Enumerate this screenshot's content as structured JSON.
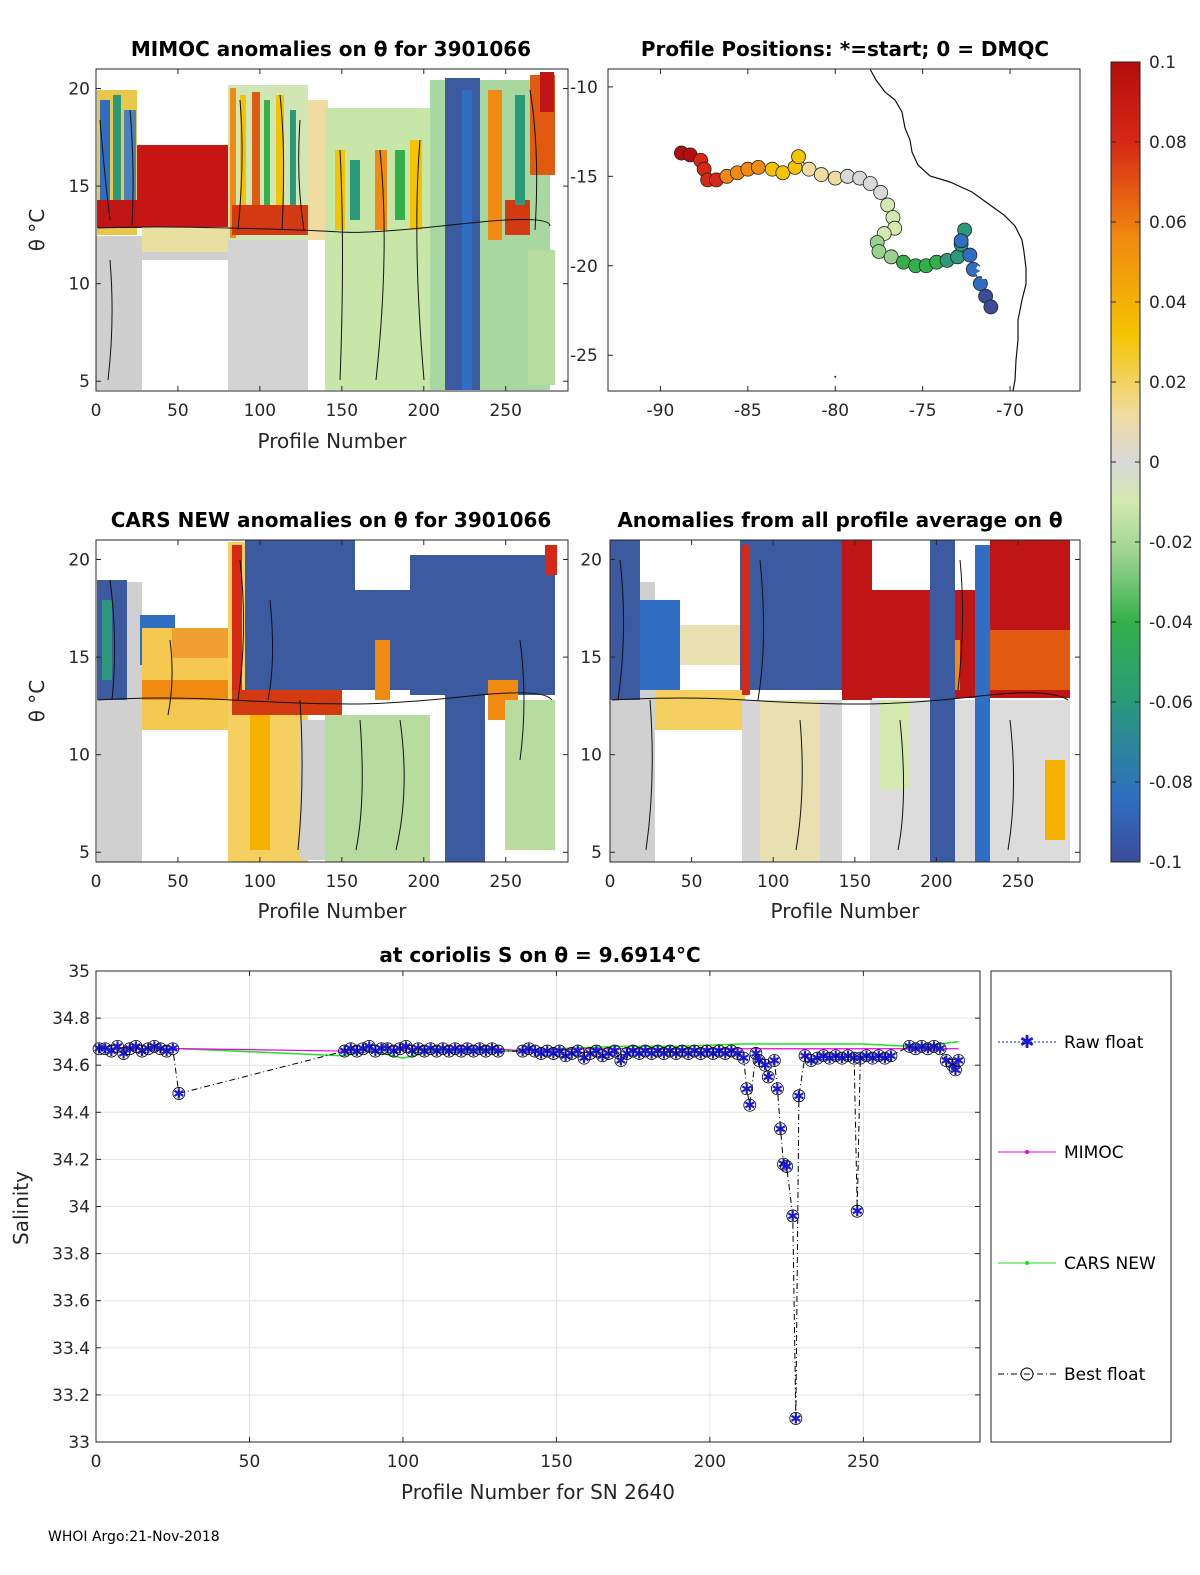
{
  "colors": {
    "raw_float": "#1a1ad6",
    "mimoc": "#e600e6",
    "cars_new": "#22e022",
    "best_float": "#000000",
    "colormap": [
      "#3b4c9a",
      "#2f6ec2",
      "#2a9a7a",
      "#33b04a",
      "#98d28e",
      "#d3e9b0",
      "#d9d9d9",
      "#f0dca0",
      "#f5c400",
      "#f08a10",
      "#d62815",
      "#b50d0d"
    ]
  },
  "footer": "WHOI Argo:21-Nov-2018",
  "chart_data": [
    {
      "id": "mimoc_anomalies",
      "type": "heatmap",
      "title": "MIMOC anomalies on θ  for 3901066",
      "xlabel": "Profile Number",
      "ylabel": "θ °C",
      "xlim": [
        0,
        288
      ],
      "ylim": [
        4.5,
        21
      ],
      "xticks": [
        "0",
        "50",
        "100",
        "150",
        "200",
        "250"
      ],
      "yticks": [
        "5",
        "10",
        "15",
        "20"
      ]
    },
    {
      "id": "profile_positions",
      "type": "scatter",
      "title": "Profile Positions: *=start; 0 = DMQC",
      "xlim": [
        -93,
        -66
      ],
      "ylim": [
        -27,
        -9
      ],
      "xticks": [
        "-90",
        "-85",
        "-80",
        "-75",
        "-70"
      ],
      "yticks": [
        "-10",
        "-15",
        "-20",
        "-25"
      ],
      "start_marker": [
        -71.5,
        -20.3
      ],
      "track": [
        [
          -88.8,
          -13.7
        ],
        [
          -88.3,
          -13.8
        ],
        [
          -87.7,
          -14.1
        ],
        [
          -87.5,
          -14.6
        ],
        [
          -87.3,
          -15.2
        ],
        [
          -86.8,
          -15.2
        ],
        [
          -86.2,
          -15.0
        ],
        [
          -85.6,
          -14.8
        ],
        [
          -85.0,
          -14.6
        ],
        [
          -84.4,
          -14.5
        ],
        [
          -83.6,
          -14.6
        ],
        [
          -83.0,
          -14.8
        ],
        [
          -82.3,
          -14.5
        ],
        [
          -82.1,
          -13.9
        ],
        [
          -81.5,
          -14.6
        ],
        [
          -80.8,
          -14.9
        ],
        [
          -80.0,
          -15.1
        ],
        [
          -79.3,
          -15.0
        ],
        [
          -78.6,
          -15.1
        ],
        [
          -78.0,
          -15.4
        ],
        [
          -77.4,
          -15.9
        ],
        [
          -77.0,
          -16.6
        ],
        [
          -76.7,
          -17.3
        ],
        [
          -76.6,
          -17.9
        ],
        [
          -77.2,
          -18.2
        ],
        [
          -77.6,
          -18.7
        ],
        [
          -77.5,
          -19.2
        ],
        [
          -76.8,
          -19.5
        ],
        [
          -76.1,
          -19.8
        ],
        [
          -75.4,
          -20.0
        ],
        [
          -74.8,
          -20.0
        ],
        [
          -74.2,
          -19.8
        ],
        [
          -73.6,
          -19.7
        ],
        [
          -73.0,
          -19.5
        ],
        [
          -72.8,
          -18.8
        ],
        [
          -72.6,
          -18.0
        ],
        [
          -72.8,
          -18.6
        ],
        [
          -72.3,
          -19.4
        ],
        [
          -72.1,
          -20.2
        ],
        [
          -71.7,
          -21.0
        ],
        [
          -71.4,
          -21.7
        ],
        [
          -71.1,
          -22.3
        ]
      ]
    },
    {
      "id": "colorbar",
      "type": "heatmap",
      "clim": [
        -0.1,
        0.1
      ],
      "ticks": [
        "0.1",
        "0.08",
        "0.06",
        "0.04",
        "0.02",
        "0",
        "-0.02",
        "-0.04",
        "-0.06",
        "-0.08",
        "-0.1"
      ]
    },
    {
      "id": "cars_new_anomalies",
      "type": "heatmap",
      "title": "CARS NEW anomalies on θ for 3901066",
      "xlabel": "Profile Number",
      "ylabel": "θ °C",
      "xlim": [
        0,
        288
      ],
      "ylim": [
        4.5,
        21
      ],
      "xticks": [
        "0",
        "50",
        "100",
        "150",
        "200",
        "250"
      ],
      "yticks": [
        "5",
        "10",
        "15",
        "20"
      ]
    },
    {
      "id": "all_profile_average_anomalies",
      "type": "heatmap",
      "title": "Anomalies from all profile average on θ",
      "xlabel": "Profile Number",
      "xlim": [
        0,
        288
      ],
      "ylim": [
        4.5,
        21
      ],
      "xticks": [
        "0",
        "50",
        "100",
        "150",
        "200",
        "250"
      ],
      "yticks": [
        "5",
        "10",
        "15",
        "20"
      ]
    },
    {
      "id": "salinity_timeseries",
      "type": "line",
      "title": "at coriolis S on θ = 9.6914°C",
      "xlabel": "Profile Number for SN 2640",
      "ylabel": "Salinity",
      "xlim": [
        0,
        288
      ],
      "ylim": [
        33,
        35
      ],
      "xticks": [
        "0",
        "50",
        "100",
        "150",
        "200",
        "250"
      ],
      "yticks": [
        "33",
        "33.2",
        "33.4",
        "33.6",
        "33.8",
        "34",
        "34.2",
        "34.4",
        "34.6",
        "34.8",
        "35"
      ],
      "legend": [
        "Raw float",
        "MIMOC",
        "CARS NEW",
        "Best float"
      ],
      "legend_position": "outside-right",
      "series": [
        {
          "name": "Raw float",
          "x": [
            1,
            3,
            5,
            7,
            9,
            11,
            13,
            15,
            17,
            19,
            21,
            23,
            25,
            27,
            81,
            83,
            85,
            87,
            89,
            91,
            93,
            95,
            97,
            99,
            101,
            103,
            105,
            107,
            109,
            111,
            113,
            115,
            117,
            119,
            121,
            123,
            125,
            127,
            129,
            131,
            139,
            141,
            143,
            145,
            147,
            149,
            151,
            153,
            155,
            157,
            159,
            161,
            163,
            165,
            167,
            169,
            171,
            173,
            175,
            177,
            179,
            181,
            183,
            185,
            187,
            189,
            191,
            193,
            195,
            197,
            199,
            201,
            203,
            205,
            207,
            209,
            211,
            212,
            213,
            215,
            216,
            218,
            219,
            221,
            222,
            223,
            224,
            225,
            227,
            228,
            229,
            231,
            233,
            235,
            237,
            239,
            241,
            243,
            245,
            247,
            248,
            249,
            251,
            253,
            255,
            257,
            259,
            265,
            267,
            269,
            271,
            273,
            275,
            277,
            279,
            280,
            281
          ],
          "y": [
            34.67,
            34.67,
            34.66,
            34.68,
            34.65,
            34.67,
            34.68,
            34.66,
            34.67,
            34.68,
            34.67,
            34.66,
            34.67,
            34.48,
            34.66,
            34.67,
            34.66,
            34.67,
            34.68,
            34.66,
            34.67,
            34.67,
            34.66,
            34.67,
            34.68,
            34.66,
            34.67,
            34.66,
            34.67,
            34.66,
            34.67,
            34.66,
            34.67,
            34.66,
            34.67,
            34.66,
            34.67,
            34.66,
            34.67,
            34.66,
            34.66,
            34.67,
            34.66,
            34.65,
            34.66,
            34.65,
            34.66,
            34.64,
            34.65,
            34.66,
            34.63,
            34.65,
            34.66,
            34.64,
            34.65,
            34.66,
            34.62,
            34.65,
            34.66,
            34.65,
            34.66,
            34.65,
            34.66,
            34.65,
            34.66,
            34.65,
            34.66,
            34.65,
            34.66,
            34.65,
            34.66,
            34.65,
            34.66,
            34.65,
            34.66,
            34.65,
            34.63,
            34.5,
            34.43,
            34.65,
            34.62,
            34.6,
            34.55,
            34.62,
            34.5,
            34.33,
            34.18,
            34.17,
            33.96,
            33.1,
            34.47,
            34.64,
            34.62,
            34.63,
            34.64,
            34.63,
            34.64,
            34.63,
            34.64,
            34.63,
            33.98,
            34.63,
            34.64,
            34.63,
            34.64,
            34.63,
            34.64,
            34.68,
            34.67,
            34.68,
            34.67,
            34.68,
            34.67,
            34.62,
            34.6,
            34.58,
            34.62
          ]
        },
        {
          "name": "MIMOC",
          "x": [
            0,
            30,
            80,
            100,
            130,
            140,
            160,
            180,
            200,
            220,
            240,
            260,
            281
          ],
          "y": [
            34.67,
            34.67,
            34.66,
            34.67,
            34.67,
            34.66,
            34.67,
            34.67,
            34.67,
            34.67,
            34.67,
            34.67,
            34.67
          ]
        },
        {
          "name": "CARS NEW",
          "x": [
            0,
            28,
            80,
            90,
            100,
            110,
            130,
            140,
            150,
            170,
            190,
            210,
            230,
            250,
            265,
            275,
            281
          ],
          "y": [
            34.67,
            34.67,
            34.64,
            34.66,
            34.63,
            34.66,
            34.66,
            34.66,
            34.67,
            34.68,
            34.68,
            34.69,
            34.69,
            34.69,
            34.68,
            34.69,
            34.7
          ]
        },
        {
          "name": "Best float",
          "x": [
            1,
            3,
            5,
            7,
            9,
            11,
            13,
            15,
            17,
            19,
            21,
            23,
            25,
            27,
            81,
            83,
            85,
            87,
            89,
            91,
            93,
            95,
            97,
            99,
            101,
            103,
            105,
            107,
            109,
            111,
            113,
            115,
            117,
            119,
            121,
            123,
            125,
            127,
            129,
            131,
            139,
            141,
            143,
            145,
            147,
            149,
            151,
            153,
            155,
            157,
            159,
            161,
            163,
            165,
            167,
            169,
            171,
            173,
            175,
            177,
            179,
            181,
            183,
            185,
            187,
            189,
            191,
            193,
            195,
            197,
            199,
            201,
            203,
            205,
            207,
            209,
            211,
            212,
            213,
            215,
            216,
            218,
            219,
            221,
            222,
            223,
            224,
            225,
            227,
            228,
            229,
            231,
            233,
            235,
            237,
            239,
            241,
            243,
            245,
            247,
            248,
            249,
            251,
            253,
            255,
            257,
            259,
            265,
            267,
            269,
            271,
            273,
            275,
            277,
            279,
            280,
            281
          ],
          "y": [
            34.67,
            34.67,
            34.66,
            34.68,
            34.65,
            34.67,
            34.68,
            34.66,
            34.67,
            34.68,
            34.67,
            34.66,
            34.67,
            34.48,
            34.66,
            34.67,
            34.66,
            34.67,
            34.68,
            34.66,
            34.67,
            34.67,
            34.66,
            34.67,
            34.68,
            34.66,
            34.67,
            34.66,
            34.67,
            34.66,
            34.67,
            34.66,
            34.67,
            34.66,
            34.67,
            34.66,
            34.67,
            34.66,
            34.67,
            34.66,
            34.66,
            34.67,
            34.66,
            34.65,
            34.66,
            34.65,
            34.66,
            34.64,
            34.65,
            34.66,
            34.63,
            34.65,
            34.66,
            34.64,
            34.65,
            34.66,
            34.62,
            34.65,
            34.66,
            34.65,
            34.66,
            34.65,
            34.66,
            34.65,
            34.66,
            34.65,
            34.66,
            34.65,
            34.66,
            34.65,
            34.66,
            34.65,
            34.66,
            34.65,
            34.66,
            34.65,
            34.63,
            34.5,
            34.43,
            34.65,
            34.62,
            34.6,
            34.55,
            34.62,
            34.5,
            34.33,
            34.18,
            34.17,
            33.96,
            33.1,
            34.47,
            34.64,
            34.62,
            34.63,
            34.64,
            34.63,
            34.64,
            34.63,
            34.64,
            34.63,
            33.98,
            34.63,
            34.64,
            34.63,
            34.64,
            34.63,
            34.64,
            34.68,
            34.67,
            34.68,
            34.67,
            34.68,
            34.67,
            34.62,
            34.6,
            34.58,
            34.62
          ]
        }
      ]
    }
  ]
}
